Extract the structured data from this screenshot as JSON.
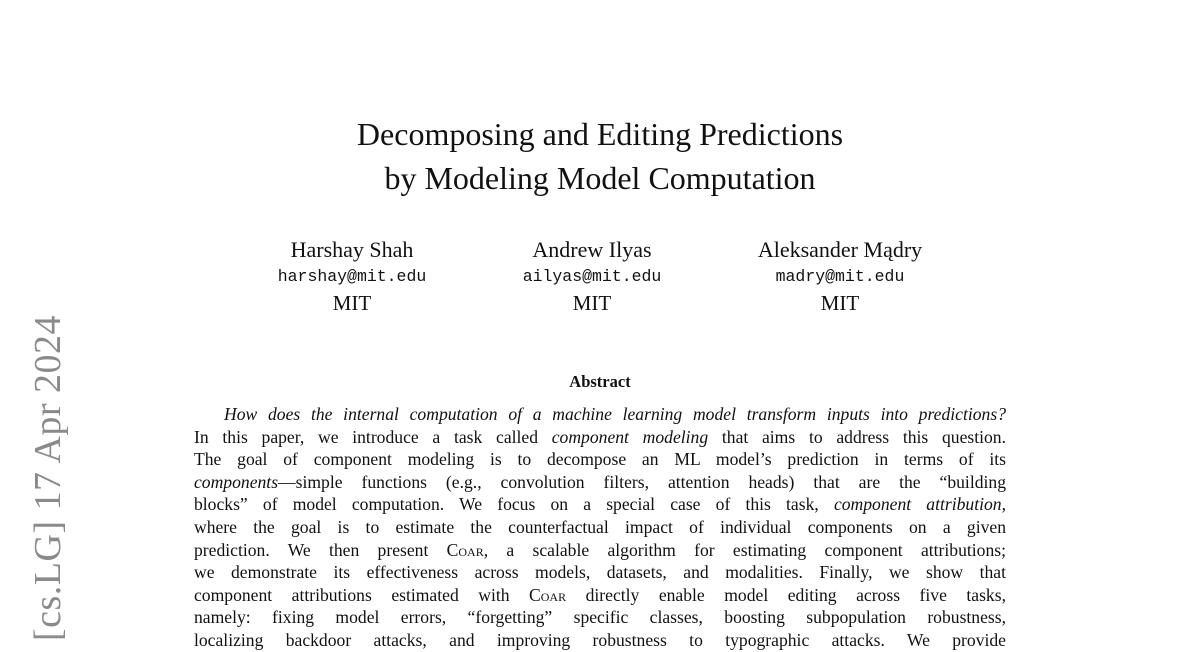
{
  "sidebar_stamp": "[cs.LG]  17 Apr 2024",
  "title": [
    "Decomposing and Editing Predictions",
    "by Modeling Model Computation"
  ],
  "authors": [
    {
      "name": "Harshay Shah",
      "email": "harshay@mit.edu",
      "affiliation": "MIT"
    },
    {
      "name": "Andrew Ilyas",
      "email": "ailyas@mit.edu",
      "affiliation": "MIT"
    },
    {
      "name": "Aleksander Mądry",
      "email": "madry@mit.edu",
      "affiliation": "MIT"
    }
  ],
  "abstract": {
    "heading": "Abstract",
    "lines": [
      [
        {
          "t": "How does the internal computation of a machine learning model transform inputs into predictions?",
          "s": "i"
        }
      ],
      [
        {
          "t": "In this paper, we introduce a task called "
        },
        {
          "t": "component modeling",
          "s": "i"
        },
        {
          "t": " that aims to address this question."
        }
      ],
      [
        {
          "t": "The goal of component modeling is to decompose an ML model’s prediction in terms of its"
        }
      ],
      [
        {
          "t": "components",
          "s": "i"
        },
        {
          "t": "—simple functions (e.g., convolution filters, attention heads) that are the “building"
        }
      ],
      [
        {
          "t": "blocks” of model computation.  We focus on a special case of this task, "
        },
        {
          "t": "component attribution",
          "s": "i"
        },
        {
          "t": ","
        }
      ],
      [
        {
          "t": "where the goal is to estimate the counterfactual impact of individual components on a given"
        }
      ],
      [
        {
          "t": "prediction. We then present "
        },
        {
          "t": "Coar",
          "s": "sc"
        },
        {
          "t": ", a scalable algorithm for estimating component attributions;"
        }
      ],
      [
        {
          "t": "we demonstrate its effectiveness across models, datasets, and modalities. Finally, we show that"
        }
      ],
      [
        {
          "t": "component attributions estimated with "
        },
        {
          "t": "Coar",
          "s": "sc"
        },
        {
          "t": " directly enable model editing across five tasks,"
        }
      ],
      [
        {
          "t": "namely: fixing model errors, “forgetting” specific classes, boosting subpopulation robustness,"
        }
      ],
      [
        {
          "t": "localizing backdoor attacks, and improving robustness to typographic attacks. We provide"
        }
      ]
    ]
  }
}
